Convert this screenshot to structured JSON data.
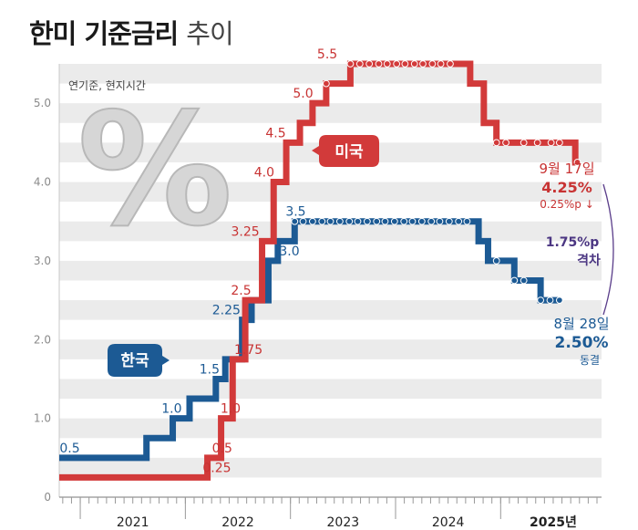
{
  "title": {
    "main": "한미 기준금리",
    "sub": "추이"
  },
  "note": "연기준, 현지시간",
  "badge_symbol": "%",
  "chart_data": {
    "type": "line",
    "x_range": [
      2020.8,
      2025.96
    ],
    "ylim": [
      0,
      5.5
    ],
    "ytick_labels": [
      "0",
      "1.0",
      "2.0",
      "3.0",
      "4.0",
      "5.0"
    ],
    "ytick_values": [
      0,
      1,
      2,
      3,
      4,
      5
    ],
    "xtick_labels": [
      "2021",
      "2022",
      "2023",
      "2024",
      "2025년"
    ],
    "xtick_centers": [
      2021.5,
      2022.5,
      2023.5,
      2024.5,
      2025.5
    ],
    "series": [
      {
        "name": "미국",
        "color": "#d23a3a",
        "steps": [
          [
            2020.8,
            0.25
          ],
          [
            2022.21,
            0.5
          ],
          [
            2022.34,
            1.0
          ],
          [
            2022.45,
            1.75
          ],
          [
            2022.57,
            2.5
          ],
          [
            2022.73,
            3.25
          ],
          [
            2022.84,
            4.0
          ],
          [
            2022.96,
            4.5
          ],
          [
            2023.09,
            4.75
          ],
          [
            2023.21,
            5.0
          ],
          [
            2023.34,
            5.25
          ],
          [
            2023.57,
            5.5
          ],
          [
            2024.71,
            5.25
          ],
          [
            2024.84,
            4.75
          ],
          [
            2024.96,
            4.5
          ],
          [
            2025.71,
            4.25
          ]
        ],
        "end": 2025.73,
        "dot_points": [
          [
            2023.34,
            5.25
          ],
          [
            2023.57,
            5.5
          ],
          [
            2023.66,
            5.5
          ],
          [
            2023.75,
            5.5
          ],
          [
            2023.84,
            5.5
          ],
          [
            2023.92,
            5.5
          ],
          [
            2024.01,
            5.5
          ],
          [
            2024.09,
            5.5
          ],
          [
            2024.18,
            5.5
          ],
          [
            2024.26,
            5.5
          ],
          [
            2024.35,
            5.5
          ],
          [
            2024.43,
            5.5
          ],
          [
            2024.52,
            5.5
          ],
          [
            2024.96,
            4.5
          ],
          [
            2025.05,
            4.5
          ],
          [
            2025.22,
            4.5
          ],
          [
            2025.35,
            4.5
          ],
          [
            2025.48,
            4.5
          ],
          [
            2025.56,
            4.5
          ],
          [
            2025.73,
            4.25
          ]
        ]
      },
      {
        "name": "한국",
        "color": "#1c5a94",
        "steps": [
          [
            2020.8,
            0.5
          ],
          [
            2021.63,
            0.75
          ],
          [
            2021.88,
            1.0
          ],
          [
            2022.04,
            1.25
          ],
          [
            2022.29,
            1.5
          ],
          [
            2022.38,
            1.75
          ],
          [
            2022.54,
            2.25
          ],
          [
            2022.63,
            2.5
          ],
          [
            2022.79,
            3.0
          ],
          [
            2022.88,
            3.25
          ],
          [
            2023.04,
            3.5
          ],
          [
            2024.79,
            3.25
          ],
          [
            2024.88,
            3.0
          ],
          [
            2025.13,
            2.75
          ],
          [
            2025.38,
            2.5
          ]
        ],
        "end": 2025.56,
        "dot_points": [
          [
            2023.04,
            3.5
          ],
          [
            2023.12,
            3.5
          ],
          [
            2023.21,
            3.5
          ],
          [
            2023.3,
            3.5
          ],
          [
            2023.38,
            3.5
          ],
          [
            2023.47,
            3.5
          ],
          [
            2023.56,
            3.5
          ],
          [
            2023.64,
            3.5
          ],
          [
            2023.73,
            3.5
          ],
          [
            2023.82,
            3.5
          ],
          [
            2023.9,
            3.5
          ],
          [
            2023.99,
            3.5
          ],
          [
            2024.08,
            3.5
          ],
          [
            2024.16,
            3.5
          ],
          [
            2024.25,
            3.5
          ],
          [
            2024.34,
            3.5
          ],
          [
            2024.42,
            3.5
          ],
          [
            2024.51,
            3.5
          ],
          [
            2024.6,
            3.5
          ],
          [
            2024.68,
            3.5
          ],
          [
            2024.96,
            3.0
          ],
          [
            2025.13,
            2.75
          ],
          [
            2025.22,
            2.75
          ],
          [
            2025.38,
            2.5
          ],
          [
            2025.47,
            2.5
          ],
          [
            2025.56,
            2.5
          ]
        ]
      }
    ],
    "us_labels": [
      {
        "text": "0.25",
        "x": 2022.3,
        "y": 0.25
      },
      {
        "text": "0.5",
        "x": 2022.35,
        "y": 0.5
      },
      {
        "text": "1.0",
        "x": 2022.43,
        "y": 1.0
      },
      {
        "text": "1.75",
        "x": 2022.6,
        "y": 1.75
      },
      {
        "text": "2.5",
        "x": 2022.53,
        "y": 2.5
      },
      {
        "text": "3.25",
        "x": 2022.57,
        "y": 3.25
      },
      {
        "text": "4.0",
        "x": 2022.75,
        "y": 4.0
      },
      {
        "text": "4.5",
        "x": 2022.86,
        "y": 4.5
      },
      {
        "text": "5.0",
        "x": 2023.12,
        "y": 5.0
      },
      {
        "text": "5.5",
        "x": 2023.35,
        "y": 5.5
      }
    ],
    "kr_labels": [
      {
        "text": "0.5",
        "x": 2020.9,
        "y": 0.5
      },
      {
        "text": "1.0",
        "x": 2021.87,
        "y": 1.0
      },
      {
        "text": "1.5",
        "x": 2022.23,
        "y": 1.5
      },
      {
        "text": "2.25",
        "x": 2022.39,
        "y": 2.25
      },
      {
        "text": "3.0",
        "x": 2022.99,
        "y": 3.0
      },
      {
        "text": "3.5",
        "x": 2023.05,
        "y": 3.5
      }
    ],
    "us_tag": "미국",
    "kr_tag": "한국",
    "annotations": {
      "us_date": "9월 17일",
      "us_rate": "4.25%",
      "us_change": "0.25%p ↓",
      "gap_value": "1.75%p",
      "gap_label": "격차",
      "kr_date": "8월 28일",
      "kr_rate": "2.50%",
      "kr_change": "동결"
    }
  }
}
